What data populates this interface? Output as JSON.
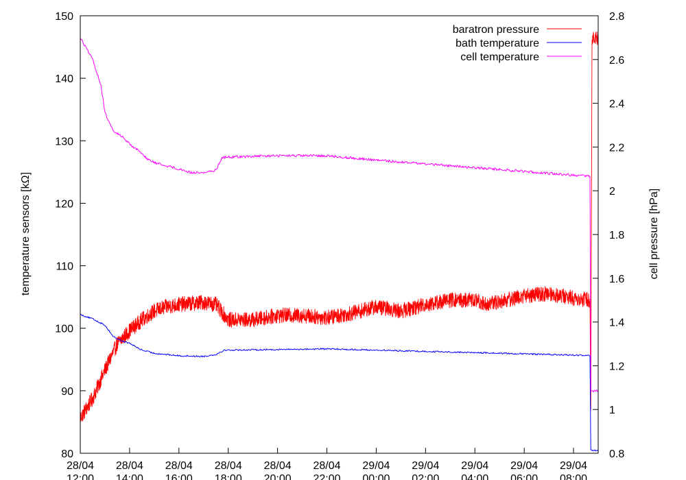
{
  "chart_data": {
    "type": "line",
    "title": "",
    "ylabel": "temperature sensors [kΩ]",
    "y2label": "cell pressure [hPa]",
    "xlabel": "",
    "grid": false,
    "legend_position": "top-right",
    "x_range": [
      "28/04 12:00",
      "29/04 09:00"
    ],
    "ylim": [
      80,
      150
    ],
    "y2lim": [
      0.8,
      2.8
    ],
    "x_ticks": [
      {
        "t": "28/04 12:00",
        "date": "28/04",
        "time": "12:00"
      },
      {
        "t": "28/04 14:00",
        "date": "28/04",
        "time": "14:00"
      },
      {
        "t": "28/04 16:00",
        "date": "28/04",
        "time": "16:00"
      },
      {
        "t": "28/04 18:00",
        "date": "28/04",
        "time": "18:00"
      },
      {
        "t": "28/04 20:00",
        "date": "28/04",
        "time": "20:00"
      },
      {
        "t": "28/04 22:00",
        "date": "28/04",
        "time": "22:00"
      },
      {
        "t": "29/04 00:00",
        "date": "29/04",
        "time": "00:00"
      },
      {
        "t": "29/04 02:00",
        "date": "29/04",
        "time": "02:00"
      },
      {
        "t": "29/04 04:00",
        "date": "29/04",
        "time": "04:00"
      },
      {
        "t": "29/04 06:00",
        "date": "29/04",
        "time": "06:00"
      },
      {
        "t": "29/04 08:00",
        "date": "29/04",
        "time": "08:00"
      }
    ],
    "y_ticks": [
      "80",
      "90",
      "100",
      "110",
      "120",
      "130",
      "140",
      "150"
    ],
    "y2_ticks": [
      "0.8",
      "1",
      "1.2",
      "1.4",
      "1.6",
      "1.8",
      "2",
      "2.2",
      "2.4",
      "2.6",
      "2.8"
    ],
    "series": [
      {
        "name": "baratron pressure",
        "axis": "y2",
        "color": "#ff0000",
        "style": "noisy",
        "noise": 0.035,
        "points": [
          [
            "28/04 12:00",
            0.96
          ],
          [
            "28/04 12:30",
            1.05
          ],
          [
            "28/04 13:00",
            1.18
          ],
          [
            "28/04 13:30",
            1.3
          ],
          [
            "28/04 14:00",
            1.36
          ],
          [
            "28/04 14:30",
            1.41
          ],
          [
            "28/04 15:00",
            1.45
          ],
          [
            "28/04 15:30",
            1.47
          ],
          [
            "28/04 16:00",
            1.48
          ],
          [
            "28/04 17:00",
            1.49
          ],
          [
            "28/04 17:30",
            1.48
          ],
          [
            "28/04 18:00",
            1.41
          ],
          [
            "28/04 19:00",
            1.41
          ],
          [
            "28/04 20:00",
            1.43
          ],
          [
            "28/04 21:00",
            1.43
          ],
          [
            "28/04 22:00",
            1.42
          ],
          [
            "28/04 23:00",
            1.44
          ],
          [
            "29/04 00:00",
            1.47
          ],
          [
            "29/04 01:00",
            1.45
          ],
          [
            "29/04 02:00",
            1.48
          ],
          [
            "29/04 03:00",
            1.5
          ],
          [
            "29/04 04:00",
            1.5
          ],
          [
            "29/04 04:30",
            1.48
          ],
          [
            "29/04 06:00",
            1.52
          ],
          [
            "29/04 07:00",
            1.53
          ],
          [
            "29/04 08:00",
            1.51
          ],
          [
            "29/04 08:40",
            1.5
          ],
          [
            "29/04 08:42",
            1.0
          ],
          [
            "29/04 08:45",
            2.7
          ],
          [
            "29/04 09:00",
            2.7
          ]
        ]
      },
      {
        "name": "bath temperature",
        "axis": "y",
        "color": "#0000ff",
        "style": "smooth",
        "noise": 0.12,
        "points": [
          [
            "28/04 12:00",
            102.2
          ],
          [
            "28/04 12:30",
            101.5
          ],
          [
            "28/04 13:00",
            100.5
          ],
          [
            "28/04 13:20",
            98.7
          ],
          [
            "28/04 13:40",
            98.0
          ],
          [
            "28/04 14:00",
            97.6
          ],
          [
            "28/04 14:30",
            96.5
          ],
          [
            "28/04 15:00",
            96.0
          ],
          [
            "28/04 16:00",
            95.6
          ],
          [
            "28/04 17:00",
            95.5
          ],
          [
            "28/04 17:30",
            95.8
          ],
          [
            "28/04 17:50",
            96.5
          ],
          [
            "28/04 20:00",
            96.6
          ],
          [
            "28/04 22:00",
            96.7
          ],
          [
            "29/04 00:00",
            96.5
          ],
          [
            "29/04 02:00",
            96.3
          ],
          [
            "29/04 04:00",
            96.1
          ],
          [
            "29/04 06:00",
            95.9
          ],
          [
            "29/04 08:00",
            95.7
          ],
          [
            "29/04 08:40",
            95.6
          ],
          [
            "29/04 08:42",
            80.5
          ],
          [
            "29/04 09:00",
            80.4
          ]
        ]
      },
      {
        "name": "cell temperature",
        "axis": "y",
        "color": "#ff00ff",
        "style": "smooth",
        "noise": 0.2,
        "points": [
          [
            "28/04 12:00",
            146.5
          ],
          [
            "28/04 12:30",
            143.0
          ],
          [
            "28/04 12:50",
            139.0
          ],
          [
            "28/04 13:00",
            134.5
          ],
          [
            "28/04 13:20",
            131.5
          ],
          [
            "28/04 13:40",
            130.8
          ],
          [
            "28/04 14:00",
            129.5
          ],
          [
            "28/04 14:30",
            128.0
          ],
          [
            "28/04 14:45",
            127.0
          ],
          [
            "28/04 15:00",
            126.5
          ],
          [
            "28/04 16:00",
            125.5
          ],
          [
            "28/04 16:30",
            124.9
          ],
          [
            "28/04 17:00",
            124.9
          ],
          [
            "28/04 17:30",
            125.3
          ],
          [
            "28/04 17:45",
            127.3
          ],
          [
            "28/04 18:00",
            127.4
          ],
          [
            "28/04 20:00",
            127.6
          ],
          [
            "28/04 22:00",
            127.6
          ],
          [
            "29/04 00:00",
            126.9
          ],
          [
            "29/04 02:00",
            126.3
          ],
          [
            "29/04 04:00",
            125.7
          ],
          [
            "29/04 06:00",
            125.1
          ],
          [
            "29/04 08:00",
            124.5
          ],
          [
            "29/04 08:40",
            124.3
          ],
          [
            "29/04 08:42",
            90.0
          ],
          [
            "29/04 09:00",
            90.0
          ]
        ]
      }
    ]
  }
}
